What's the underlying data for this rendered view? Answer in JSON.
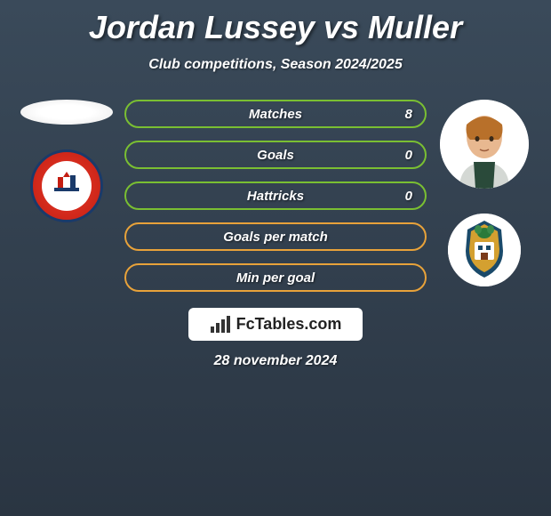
{
  "title": "Jordan Lussey vs Muller",
  "subtitle": "Club competitions, Season 2024/2025",
  "date": "28 november 2024",
  "logo_text": "FcTables.com",
  "colors": {
    "bar_border_green": "#7abf32",
    "bar_border_orange": "#e8a23a",
    "title_color": "#ffffff",
    "background_top": "#3a4a5a",
    "background_bottom": "#2a3542"
  },
  "players": {
    "left": {
      "name": "Jordan Lussey",
      "club": "AFC Fylde"
    },
    "right": {
      "name": "Muller",
      "club": "Sutton United"
    }
  },
  "stats": [
    {
      "label": "Matches",
      "value_right": "8",
      "color": "green"
    },
    {
      "label": "Goals",
      "value_right": "0",
      "color": "green"
    },
    {
      "label": "Hattricks",
      "value_right": "0",
      "color": "green"
    },
    {
      "label": "Goals per match",
      "value_right": "",
      "color": "orange"
    },
    {
      "label": "Min per goal",
      "value_right": "",
      "color": "orange"
    }
  ]
}
